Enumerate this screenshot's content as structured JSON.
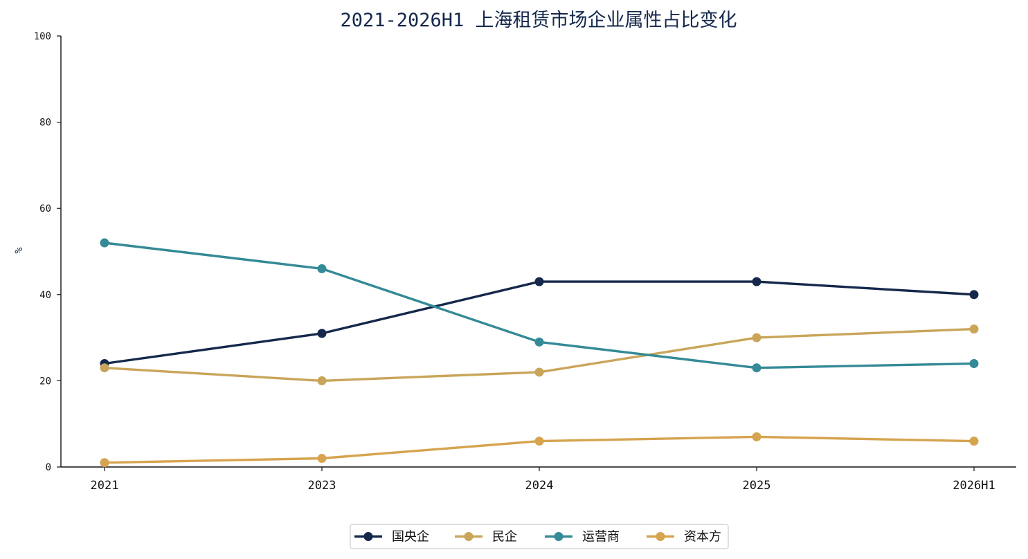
{
  "chart_data": {
    "type": "line",
    "title": "2021-2026H1 上海租赁市场企业属性占比变化",
    "xlabel": "",
    "ylabel": "%",
    "x": [
      "2021",
      "2023",
      "2024",
      "2025",
      "2026H1"
    ],
    "ylim": [
      0,
      100
    ],
    "yticks": [
      0,
      20,
      40,
      60,
      80,
      100
    ],
    "grid": false,
    "legend_position": "bottom-center",
    "series": [
      {
        "name": "国央企",
        "color": "#14284b",
        "values": [
          24,
          31,
          43,
          43,
          40
        ]
      },
      {
        "name": "民企",
        "color": "#c9a55a",
        "values": [
          23,
          20,
          22,
          30,
          32
        ]
      },
      {
        "name": "运营商",
        "color": "#348a96",
        "values": [
          52,
          46,
          29,
          23,
          24
        ]
      },
      {
        "name": "资本方",
        "color": "#d6a34e",
        "values": [
          1,
          2,
          6,
          7,
          6
        ]
      }
    ]
  }
}
